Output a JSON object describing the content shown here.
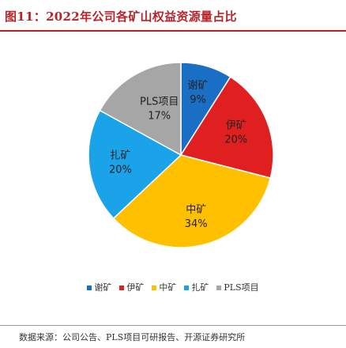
{
  "figure": {
    "title": "图11：2022年公司各矿山权益资源量占比",
    "source": "数据来源：公司公告、PLS项目可研报告、开源证券研究所"
  },
  "chart_data": {
    "type": "pie",
    "title": "图11：2022年公司各矿山权益资源量占比",
    "slices": [
      {
        "label": "谢矿",
        "value": 9,
        "value_label": "9%",
        "color": "#1a6ec4"
      },
      {
        "label": "伊矿",
        "value": 20,
        "value_label": "20%",
        "color": "#e02020"
      },
      {
        "label": "中矿",
        "value": 34,
        "value_label": "34%",
        "color": "#ffc000"
      },
      {
        "label": "扎矿",
        "value": 20,
        "value_label": "20%",
        "color": "#1aa3e8"
      },
      {
        "label": "PLS项目",
        "value": 17,
        "value_label": "17%",
        "color": "#a6a6a6"
      }
    ],
    "start": "12 o'clock",
    "direction": "clockwise",
    "legend_position": "bottom"
  }
}
